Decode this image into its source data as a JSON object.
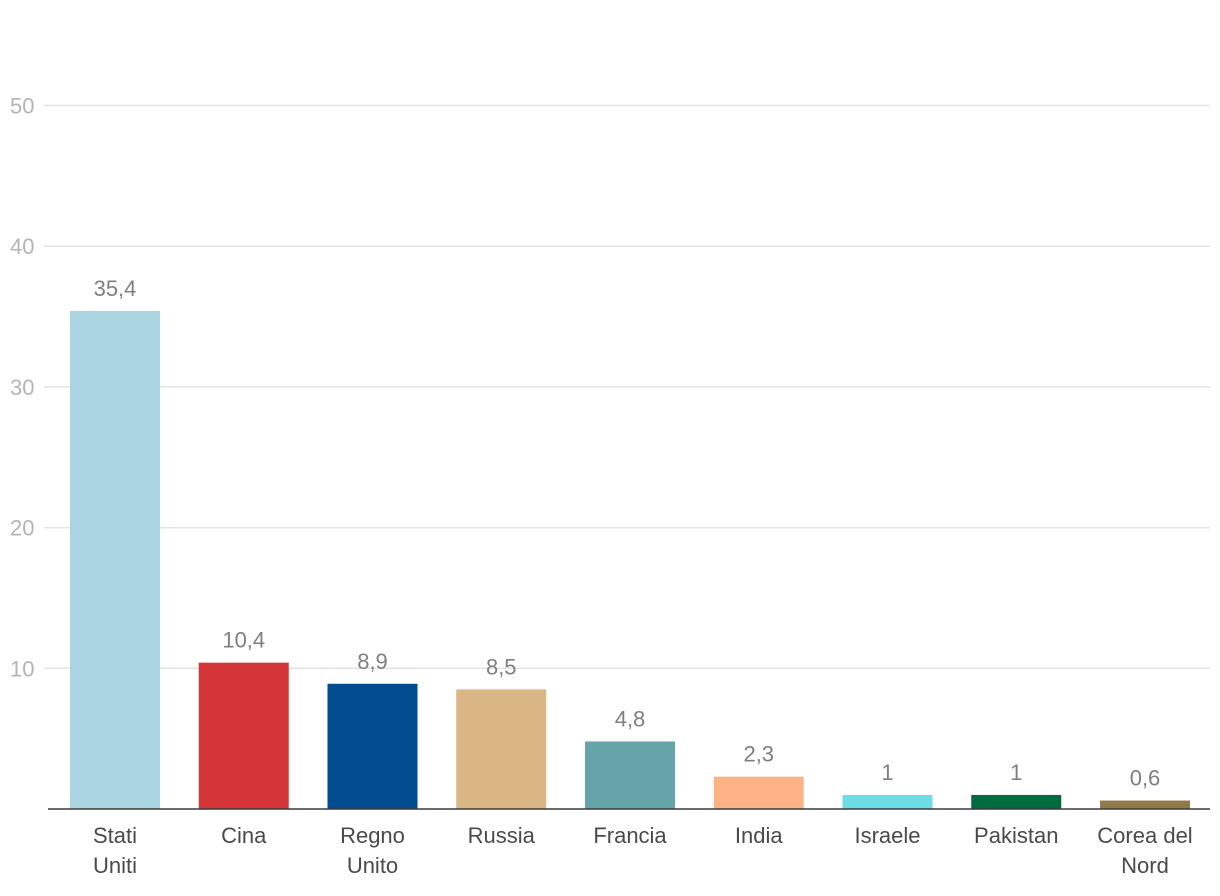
{
  "chart_data": {
    "type": "bar",
    "categories": [
      "Stati Uniti",
      "Cina",
      "Regno Unito",
      "Russia",
      "Francia",
      "India",
      "Israele",
      "Pakistan",
      "Corea del Nord"
    ],
    "values": [
      35.4,
      10.4,
      8.9,
      8.5,
      4.8,
      2.3,
      1,
      1,
      0.6
    ],
    "value_labels": [
      "35,4",
      "10,4",
      "8,9",
      "8,5",
      "4,8",
      "2,3",
      "1",
      "1",
      "0,6"
    ],
    "colors": [
      "#aad4e2",
      "#d43537",
      "#024c8f",
      "#d9b683",
      "#65a4a9",
      "#ffb286",
      "#6ddce5",
      "#006b3e",
      "#917a4a"
    ],
    "yticks": [
      10,
      20,
      30,
      40,
      50
    ],
    "ytick_labels": [
      "10",
      "20",
      "30",
      "40",
      "50"
    ],
    "ylim": [
      0,
      50
    ],
    "grid": true
  }
}
